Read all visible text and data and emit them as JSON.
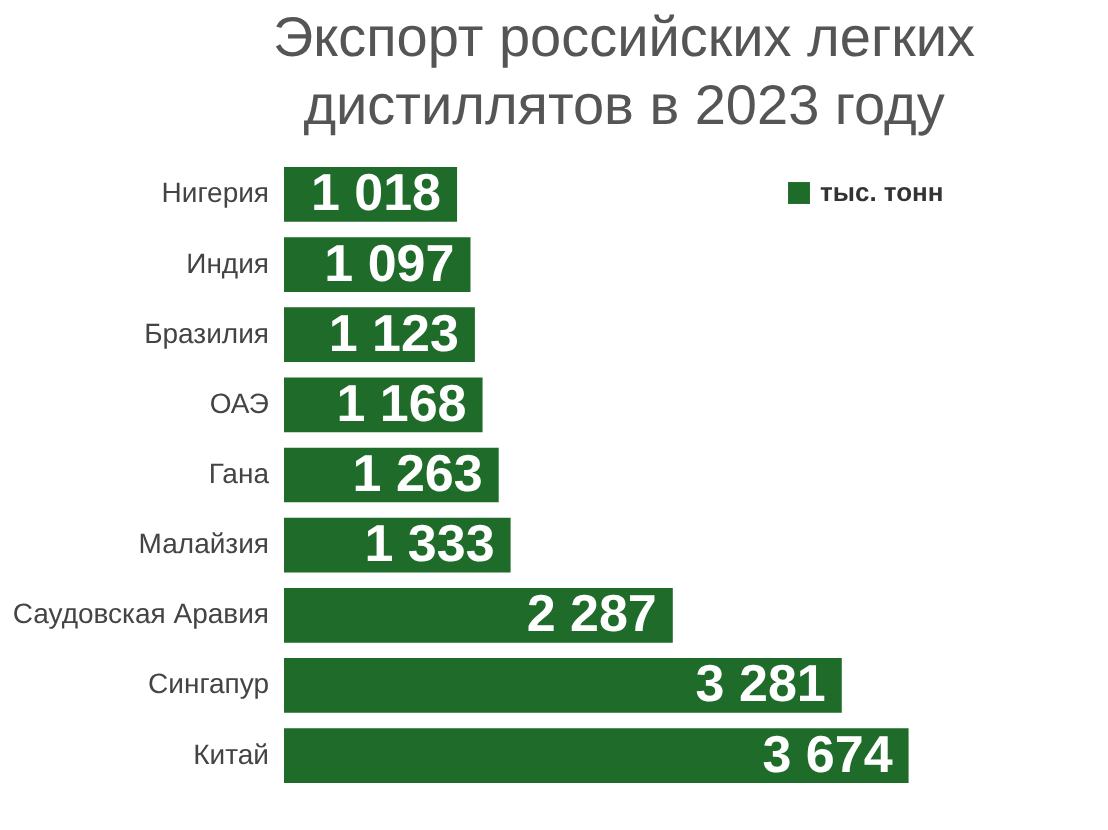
{
  "chart_data": {
    "type": "bar",
    "orientation": "horizontal",
    "title": "Экспорт российских легких\nдистиллятов в 2023 году",
    "categories": [
      "Нигерия",
      "Индия",
      "Бразилия",
      "ОАЭ",
      "Гана",
      "Малайзия",
      "Саудовская Аравия",
      "Сингапур",
      "Китай"
    ],
    "series": [
      {
        "name": "тыс. тонн",
        "color": "#1e6b2a",
        "values": [
          1018,
          1097,
          1123,
          1168,
          1263,
          1333,
          2287,
          3281,
          3674
        ],
        "value_labels": [
          "1 018",
          "1 097",
          "1 123",
          "1 168",
          "1 263",
          "1 333",
          "2 287",
          "3 281",
          "3 674"
        ]
      }
    ],
    "legend": "top right",
    "tick_labels": "y"
  }
}
